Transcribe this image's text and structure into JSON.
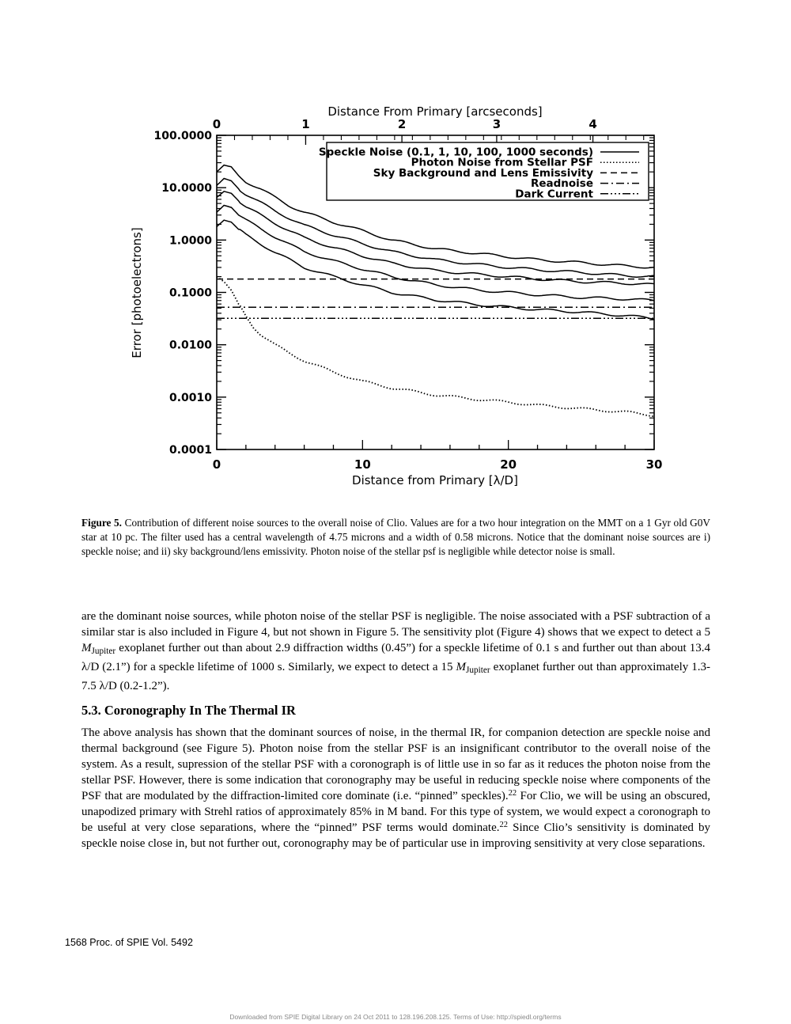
{
  "chart_data": {
    "type": "line",
    "title": "",
    "xlabel": "Distance from Primary [λ/D]",
    "x2label": "Distance From Primary [arcseconds]",
    "ylabel": "Error [photoelectrons]",
    "xlim": [
      0,
      30
    ],
    "ylim": [
      0.0001,
      100
    ],
    "yscale": "log",
    "x_ticks": [
      "0",
      "10",
      "20",
      "30"
    ],
    "x2_ticks": [
      "0",
      "1",
      "2",
      "3",
      "4"
    ],
    "x2_tick_positions_lambda_d": [
      0,
      6.1,
      12.7,
      19.2,
      25.8
    ],
    "y_ticks": [
      "100.0000",
      "10.0000",
      "1.0000",
      "0.1000",
      "0.0100",
      "0.0010",
      "0.0001"
    ],
    "y_tick_values": [
      100,
      10,
      1,
      0.1,
      0.01,
      0.001,
      0.0001
    ],
    "legend_position": "top-right",
    "legend": [
      {
        "label": "Speckle Noise (0.1, 1, 10, 100, 1000 seconds)",
        "style": "solid"
      },
      {
        "label": "Photon Noise from Stellar PSF",
        "style": "dotted"
      },
      {
        "label": "Sky Background and Lens Emissivity",
        "style": "dashed"
      },
      {
        "label": "Readnoise",
        "style": "dashdot"
      },
      {
        "label": "Dark Current",
        "style": "dashdotdotdot"
      }
    ],
    "series": [
      {
        "legend": "Speckle Noise (0.1, 1, 10, 100, 1000 seconds)",
        "style": "solid",
        "x": [
          0,
          0.5,
          1,
          1.5,
          2,
          3,
          4,
          5,
          6,
          8,
          10,
          12,
          15,
          18,
          20,
          22,
          25,
          28,
          30
        ],
        "y": [
          20,
          27,
          25,
          17,
          13,
          9.5,
          6.5,
          4.5,
          3.4,
          2.2,
          1.5,
          1.0,
          0.68,
          0.55,
          0.48,
          0.42,
          0.37,
          0.32,
          0.3
        ]
      },
      {
        "legend": "Speckle Noise (0.1, 1, 10, 100, 1000 seconds)",
        "style": "solid",
        "x": [
          0,
          0.5,
          1,
          1.5,
          2,
          3,
          4,
          5,
          6,
          8,
          10,
          12,
          15,
          18,
          20,
          22,
          25,
          28,
          30
        ],
        "y": [
          11,
          15,
          13.5,
          9.5,
          7.5,
          5.2,
          3.6,
          2.6,
          1.9,
          1.25,
          0.85,
          0.6,
          0.42,
          0.34,
          0.3,
          0.27,
          0.24,
          0.21,
          0.2
        ]
      },
      {
        "legend": "Speckle Noise (0.1, 1, 10, 100, 1000 seconds)",
        "style": "solid",
        "x": [
          0,
          0.5,
          1,
          1.5,
          2,
          3,
          4,
          5,
          6,
          8,
          10,
          12,
          15,
          18,
          20,
          22,
          25,
          28,
          30
        ],
        "y": [
          6.5,
          8.5,
          7.8,
          5.6,
          4.3,
          3.0,
          2.1,
          1.5,
          1.1,
          0.72,
          0.5,
          0.36,
          0.26,
          0.22,
          0.2,
          0.18,
          0.16,
          0.15,
          0.14
        ]
      },
      {
        "legend": "Speckle Noise (0.1, 1, 10, 100, 1000 seconds)",
        "style": "solid",
        "x": [
          0,
          0.5,
          1,
          1.5,
          2,
          3,
          4,
          5,
          6,
          8,
          10,
          12,
          15,
          18,
          20,
          22,
          25,
          28,
          30
        ],
        "y": [
          3.4,
          4.6,
          4.2,
          3.0,
          2.4,
          1.65,
          1.15,
          0.82,
          0.6,
          0.4,
          0.28,
          0.2,
          0.14,
          0.11,
          0.1,
          0.09,
          0.08,
          0.075,
          0.07
        ]
      },
      {
        "legend": "Speckle Noise (0.1, 1, 10, 100, 1000 seconds)",
        "style": "solid",
        "x": [
          0,
          0.5,
          1,
          1.5,
          2,
          3,
          4,
          5,
          6,
          8,
          10,
          12,
          15,
          18,
          20,
          22,
          25,
          28,
          30
        ],
        "y": [
          1.8,
          2.4,
          2.2,
          1.6,
          1.25,
          0.85,
          0.58,
          0.42,
          0.3,
          0.2,
          0.14,
          0.1,
          0.072,
          0.058,
          0.052,
          0.047,
          0.042,
          0.036,
          0.032
        ]
      },
      {
        "legend": "Photon Noise from Stellar PSF",
        "style": "dotted",
        "x": [
          0,
          0.5,
          1,
          1.5,
          2,
          2.5,
          3,
          4,
          5,
          6,
          8,
          10,
          12,
          15,
          18,
          20,
          22,
          25,
          28,
          30
        ],
        "y": [
          0.2,
          0.16,
          0.11,
          0.06,
          0.035,
          0.022,
          0.016,
          0.01,
          0.0068,
          0.005,
          0.003,
          0.002,
          0.0015,
          0.0011,
          0.0009,
          0.0008,
          0.0007,
          0.0006,
          0.00052,
          0.00045
        ]
      },
      {
        "legend": "Sky Background and Lens Emissivity",
        "style": "dashed",
        "x": [
          0,
          30
        ],
        "y": [
          0.18,
          0.18
        ]
      },
      {
        "legend": "Readnoise",
        "style": "dashdot",
        "x": [
          0,
          30
        ],
        "y": [
          0.052,
          0.052
        ]
      },
      {
        "legend": "Dark Current",
        "style": "dashdotdotdot",
        "x": [
          0,
          30
        ],
        "y": [
          0.032,
          0.032
        ]
      }
    ]
  },
  "caption": {
    "label": "Figure 5.",
    "text": "Contribution of different noise sources to the overall noise of Clio. Values are for a two hour integration on the MMT on a 1 Gyr old G0V star at 10 pc. The filter used has a central wavelength of 4.75 microns and a width of 0.58 microns. Notice that the dominant noise sources are i) speckle noise; and ii) sky background/lens emissivity. Photon noise of the stellar psf is negligible while detector noise is small."
  },
  "para1": {
    "t1": "are the dominant noise sources, while photon noise of the stellar PSF is negligible. The noise associated with a PSF subtraction of a similar star is also included in Figure 4, but not shown in Figure 5. The sensitivity plot (Figure 4) shows that we expect to detect a 5 ",
    "m": "M",
    "sub": "Jupiter",
    "t2": " exoplanet further out than about 2.9 diffraction widths (0.45”) for a speckle lifetime of 0.1 s and further out than about 13.4 λ/D (2.1”) for a speckle lifetime of 1000 s. Similarly, we expect to detect a 15 ",
    "t3": " exoplanet further out than approximately 1.3-7.5 λ/D (0.2-1.2”)."
  },
  "heading": "5.3. Coronography In The Thermal IR",
  "para2": {
    "t1": "The above analysis has shown that the dominant sources of noise, in the thermal IR, for companion detection are speckle noise and thermal background (see Figure 5). Photon noise from the stellar PSF is an insignificant contributor to the overall noise of the system. As a result, supression of the stellar PSF with a coronograph is of little use in so far as it reduces the photon noise from the stellar PSF. However, there is some indication that coronography may be useful in reducing speckle noise where components of the PSF that are modulated by the diffraction-limited core dominate (i.e. “pinned” speckles).",
    "ref1": "22",
    "t2": " For Clio, we will be using an obscured, unapodized primary with Strehl ratios of approximately 85% in M band. For this type of system, we would expect a coronograph to be useful at very close separations, where the “pinned” PSF terms would dominate.",
    "ref2": "22",
    "t3": " Since Clio’s sensitivity is dominated by speckle noise close in, but not further out, coronography may be of particular use in improving sensitivity at very close separations."
  },
  "footer": {
    "page_info": "1568    Proc. of SPIE Vol. 5492",
    "download": "Downloaded from SPIE Digital Library on 24 Oct 2011 to 128.196.208.125. Terms of Use:  http://spiedl.org/terms"
  }
}
